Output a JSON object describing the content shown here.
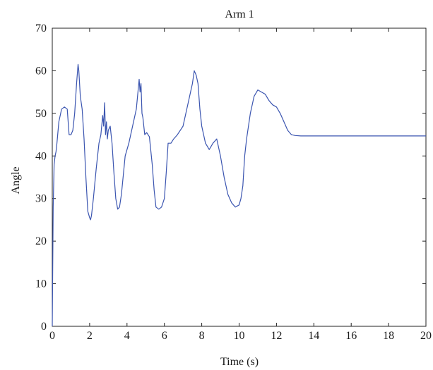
{
  "chart_data": {
    "type": "line",
    "title": "Arm 1",
    "xlabel": "Time (s)",
    "ylabel": "Angle",
    "xlim": [
      0,
      20
    ],
    "ylim": [
      0,
      70
    ],
    "x_ticks": [
      0,
      2,
      4,
      6,
      8,
      10,
      12,
      14,
      16,
      18,
      20
    ],
    "y_ticks": [
      0,
      10,
      20,
      30,
      40,
      50,
      60,
      70
    ],
    "grid": false,
    "line_color": "#3b55b0",
    "series": [
      {
        "x": [
          0,
          0.05,
          0.1,
          0.15,
          0.2,
          0.25,
          0.35,
          0.5,
          0.65,
          0.8,
          0.9,
          1.0,
          1.1,
          1.2,
          1.3,
          1.38,
          1.42,
          1.5,
          1.6,
          1.7,
          1.8,
          1.9,
          2.0,
          2.05,
          2.1,
          2.2,
          2.35,
          2.5,
          2.6,
          2.7,
          2.75,
          2.8,
          2.85,
          2.9,
          2.95,
          3.0,
          3.1,
          3.2,
          3.3,
          3.4,
          3.5,
          3.6,
          3.7,
          3.9,
          4.1,
          4.3,
          4.5,
          4.65,
          4.7,
          4.75,
          4.8,
          4.85,
          4.95,
          5.05,
          5.2,
          5.35,
          5.45,
          5.55,
          5.7,
          5.85,
          6.0,
          6.1,
          6.2,
          6.35,
          6.5,
          6.6,
          6.7,
          7.0,
          7.3,
          7.5,
          7.6,
          7.7,
          7.8,
          7.9,
          8.0,
          8.2,
          8.4,
          8.6,
          8.8,
          9.0,
          9.2,
          9.4,
          9.6,
          9.8,
          10.0,
          10.1,
          10.2,
          10.3,
          10.4,
          10.6,
          10.8,
          11.0,
          11.2,
          11.4,
          11.6,
          11.8,
          12.0,
          12.2,
          12.4,
          12.6,
          12.8,
          13.0,
          13.3,
          13.6,
          14.0,
          14.5,
          15,
          16,
          17,
          18,
          19,
          20
        ],
        "y": [
          0,
          28,
          38,
          40,
          41,
          43,
          48,
          51,
          51.5,
          51,
          45,
          45,
          46,
          50,
          57,
          61.5,
          60,
          54,
          51,
          44,
          35,
          27,
          25.5,
          25,
          26,
          30,
          37,
          43,
          45,
          49.5,
          47,
          52.5,
          45,
          48,
          44,
          46,
          47,
          43,
          36,
          30,
          27.5,
          28,
          31,
          40,
          43,
          47,
          51,
          58,
          55,
          57,
          50,
          49,
          45,
          45.5,
          44.5,
          38,
          32,
          28,
          27.5,
          28,
          30,
          36,
          43,
          43,
          44,
          44.5,
          45,
          47,
          53,
          57,
          60,
          59,
          57,
          51,
          47,
          43,
          41.5,
          43,
          44,
          40,
          35,
          31,
          29,
          28,
          28.5,
          30,
          33,
          40,
          44,
          50,
          54,
          55.5,
          55,
          54.5,
          53,
          52,
          51.5,
          50,
          48,
          46,
          45,
          44.8,
          44.7,
          44.7,
          44.7,
          44.7,
          44.7,
          44.7,
          44.7,
          44.7,
          44.7,
          44.7
        ]
      }
    ]
  }
}
